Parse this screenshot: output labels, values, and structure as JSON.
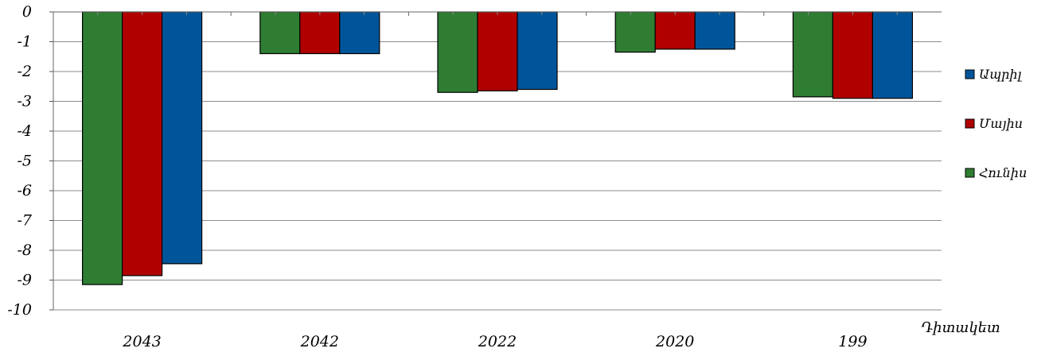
{
  "chart_data": {
    "type": "bar",
    "categories": [
      "2043",
      "2042",
      "2022",
      "2020",
      "199"
    ],
    "series": [
      {
        "name": "Հունիս",
        "color": "#2E7D32",
        "values": [
          -9.15,
          -1.4,
          -2.7,
          -1.35,
          -2.85
        ]
      },
      {
        "name": "Մայիս",
        "color": "#B00000",
        "values": [
          -8.85,
          -1.4,
          -2.65,
          -1.25,
          -2.9
        ]
      },
      {
        "name": "Ապրիլ",
        "color": "#00559A",
        "values": [
          -8.45,
          -1.4,
          -2.6,
          -1.25,
          -2.9
        ]
      }
    ],
    "legend_order": [
      2,
      1,
      0
    ],
    "xlabel": "Դիտակետ",
    "ylabel": "",
    "ylim": [
      -10,
      0
    ],
    "yticks": [
      0,
      -1,
      -2,
      -3,
      -4,
      -5,
      -6,
      -7,
      -8,
      -9,
      -10
    ],
    "ytick_labels": [
      "0",
      "-1",
      "-2",
      "-3",
      "-4",
      "-5",
      "-6",
      "-7",
      "-8",
      "-9",
      "-10"
    ],
    "grid": true,
    "legend_position": "right"
  }
}
